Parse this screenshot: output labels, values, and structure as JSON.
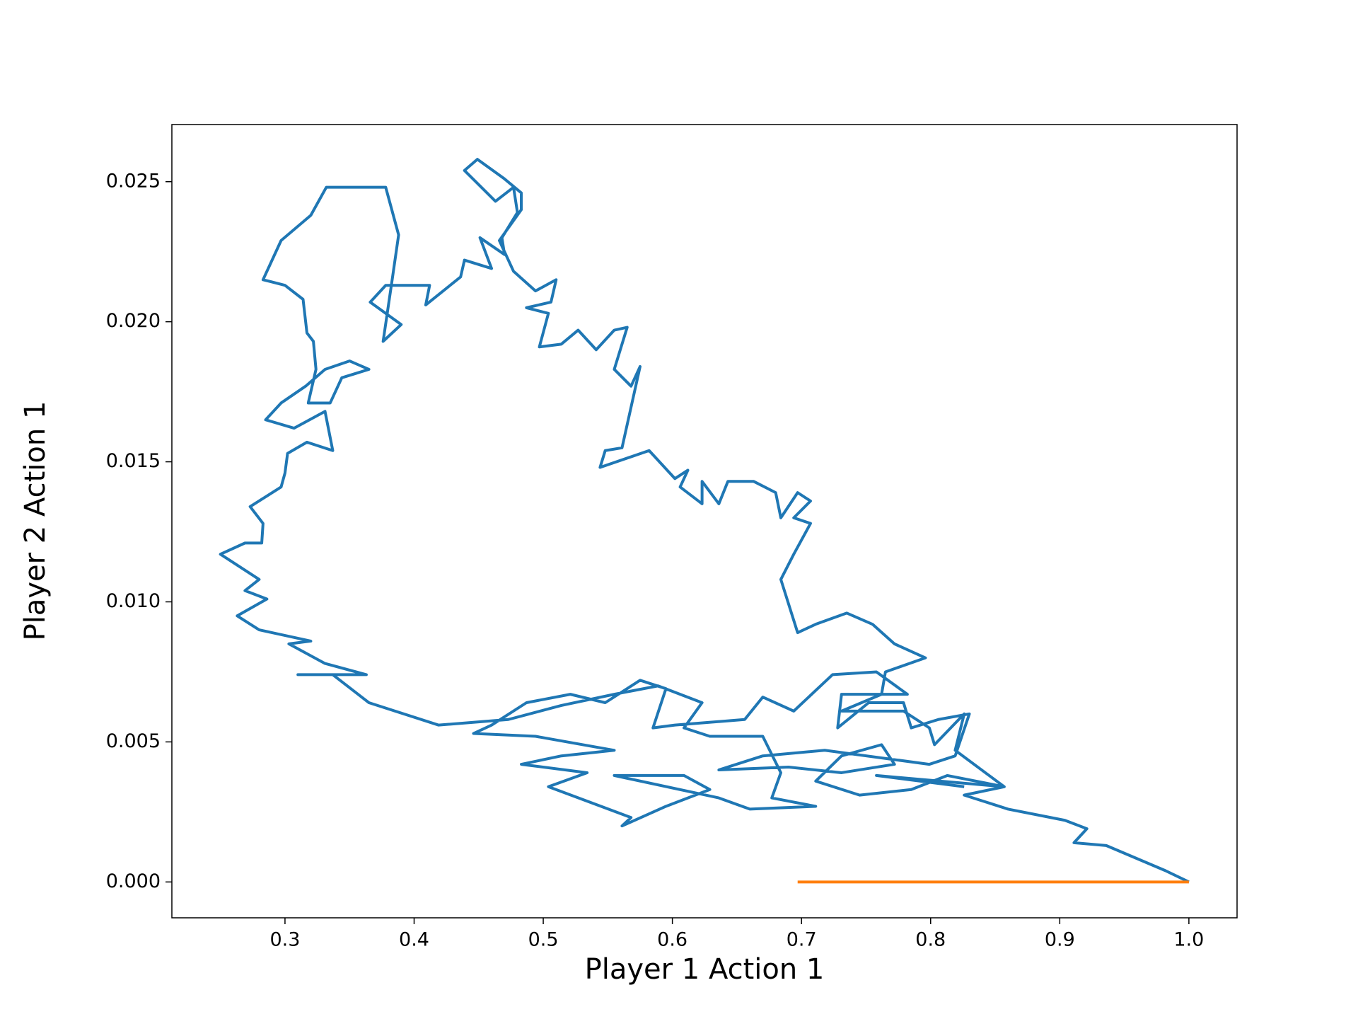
{
  "chart_data": {
    "type": "line",
    "x_label": "Player 1 Action 1",
    "y_label": "Player 2 Action 1",
    "xlim": [
      0.2124,
      1.0373
    ],
    "ylim": [
      -0.00128,
      0.02704
    ],
    "xticks": [
      0.3,
      0.4,
      0.5,
      0.6,
      0.7,
      0.8,
      0.9,
      {
        "value": 1,
        "label": "1.0"
      }
    ],
    "yticks": [
      {
        "value": 0,
        "label": "0.000"
      },
      0.005,
      {
        "value": 0.01,
        "label": "0.010"
      },
      0.015,
      {
        "value": 0.02,
        "label": "0.020"
      },
      0.025
    ],
    "series": [
      {
        "color": "#1f77b4",
        "x": [
          1.0,
          0.982,
          0.936,
          0.911,
          0.921,
          0.904,
          0.86,
          0.826,
          0.857,
          0.813,
          0.785,
          0.745,
          0.711,
          0.731,
          0.762,
          0.772,
          0.731,
          0.69,
          0.636,
          0.67,
          0.718,
          0.799,
          0.819,
          0.83,
          0.806,
          0.785,
          0.779,
          0.752,
          0.728,
          0.731,
          0.782,
          0.758,
          0.724,
          0.694,
          0.67,
          0.656,
          0.602,
          0.585,
          0.595,
          0.575,
          0.548,
          0.521,
          0.487,
          0.46,
          0.446,
          0.494,
          0.555,
          0.514,
          0.483,
          0.534,
          0.504,
          0.568,
          0.561,
          0.595,
          0.629,
          0.609,
          0.555,
          0.636,
          0.66,
          0.711,
          0.677,
          0.684,
          0.67,
          0.629,
          0.609,
          0.623,
          0.589,
          0.555,
          0.514,
          0.473,
          0.419,
          0.365,
          0.337,
          0.31,
          0.363,
          0.331,
          0.303,
          0.32,
          0.28,
          0.263,
          0.286,
          0.269,
          0.28,
          0.25,
          0.269,
          0.282,
          0.283,
          0.273,
          0.297,
          0.3,
          0.302,
          0.317,
          0.337,
          0.331,
          0.307,
          0.285,
          0.297,
          0.316,
          0.331,
          0.35,
          0.365,
          0.344,
          0.335,
          0.318,
          0.324,
          0.322,
          0.317,
          0.314,
          0.3,
          0.283,
          0.297,
          0.32,
          0.332,
          0.378,
          0.388,
          0.383,
          0.376,
          0.39,
          0.366,
          0.378,
          0.412,
          0.409,
          0.436,
          0.439,
          0.46,
          0.451,
          0.47,
          0.468,
          0.48,
          0.477,
          0.463,
          0.439,
          0.449,
          0.47,
          0.483,
          0.483,
          0.466,
          0.477,
          0.494,
          0.51,
          0.506,
          0.487,
          0.504,
          0.497,
          0.514,
          0.527,
          0.541,
          0.555,
          0.565,
          0.555,
          0.568,
          0.575,
          0.561,
          0.548,
          0.544,
          0.582,
          0.602,
          0.612,
          0.606,
          0.623,
          0.623,
          0.636,
          0.643,
          0.663,
          0.68,
          0.684,
          0.697,
          0.707,
          0.694,
          0.707,
          0.694,
          0.684,
          0.697,
          0.711,
          0.735,
          0.755,
          0.772,
          0.796,
          0.765,
          0.762,
          0.731,
          0.779,
          0.799,
          0.803,
          0.826,
          0.819,
          0.857,
          0.758,
          0.826
        ],
        "values": [
          0,
          0.0004,
          0.0013,
          0.0014,
          0.0019,
          0.0022,
          0.0026,
          0.0031,
          0.0034,
          0.0038,
          0.0033,
          0.0031,
          0.0036,
          0.0045,
          0.0049,
          0.0042,
          0.0039,
          0.0041,
          0.004,
          0.0045,
          0.0047,
          0.0042,
          0.0045,
          0.006,
          0.0058,
          0.0055,
          0.0064,
          0.0064,
          0.0055,
          0.0067,
          0.0067,
          0.0075,
          0.0074,
          0.0061,
          0.0066,
          0.0058,
          0.0056,
          0.0055,
          0.0069,
          0.0072,
          0.0064,
          0.0067,
          0.0064,
          0.0056,
          0.0053,
          0.0052,
          0.0047,
          0.0045,
          0.0042,
          0.0039,
          0.0034,
          0.0023,
          0.002,
          0.0027,
          0.0033,
          0.0038,
          0.0038,
          0.003,
          0.0026,
          0.0027,
          0.003,
          0.0039,
          0.0052,
          0.0052,
          0.0055,
          0.0064,
          0.007,
          0.0067,
          0.0063,
          0.0058,
          0.0056,
          0.0064,
          0.0074,
          0.0074,
          0.0074,
          0.0078,
          0.0085,
          0.0086,
          0.009,
          0.0095,
          0.0101,
          0.0104,
          0.0108,
          0.0117,
          0.0121,
          0.0121,
          0.0128,
          0.0134,
          0.0141,
          0.0146,
          0.0153,
          0.0157,
          0.0154,
          0.0168,
          0.0162,
          0.0165,
          0.0171,
          0.0177,
          0.0183,
          0.0186,
          0.0183,
          0.018,
          0.0171,
          0.0171,
          0.0183,
          0.0193,
          0.0196,
          0.0208,
          0.0213,
          0.0215,
          0.0229,
          0.0238,
          0.0248,
          0.0248,
          0.0231,
          0.0215,
          0.0193,
          0.0199,
          0.0207,
          0.0213,
          0.0213,
          0.0206,
          0.0216,
          0.0222,
          0.0219,
          0.023,
          0.0224,
          0.023,
          0.0239,
          0.0248,
          0.0243,
          0.0254,
          0.0258,
          0.0251,
          0.0246,
          0.024,
          0.0229,
          0.0218,
          0.0211,
          0.0215,
          0.0207,
          0.0205,
          0.0203,
          0.0191,
          0.0192,
          0.0197,
          0.019,
          0.0197,
          0.0198,
          0.0183,
          0.0177,
          0.0184,
          0.0155,
          0.0154,
          0.0148,
          0.0154,
          0.0144,
          0.0147,
          0.0141,
          0.0135,
          0.0143,
          0.0135,
          0.0143,
          0.0143,
          0.0139,
          0.013,
          0.0139,
          0.0136,
          0.013,
          0.0128,
          0.0117,
          0.0108,
          0.0089,
          0.0092,
          0.0096,
          0.0092,
          0.0085,
          0.008,
          0.0075,
          0.0067,
          0.0061,
          0.0061,
          0.0055,
          0.0049,
          0.006,
          0.0047,
          0.0034,
          0.0038,
          0.0034
        ]
      },
      {
        "color": "#ff7f0e",
        "x": [
          0.697,
          1.0
        ],
        "values": [
          0,
          0
        ]
      }
    ]
  }
}
